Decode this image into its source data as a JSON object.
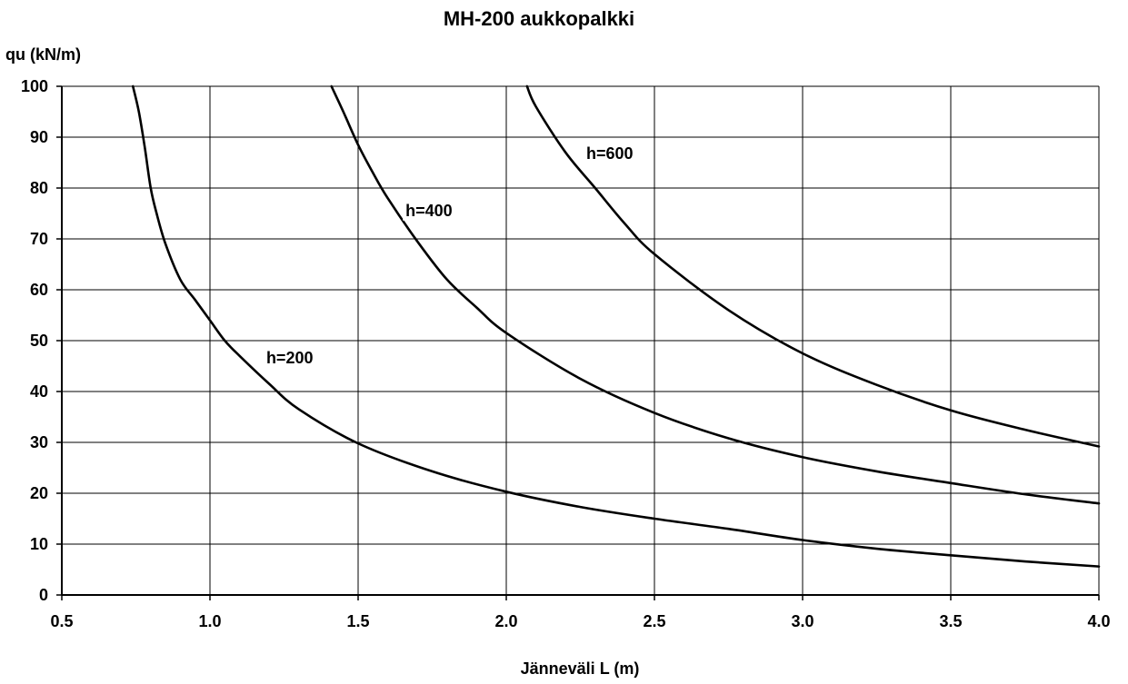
{
  "chart_data": {
    "type": "line",
    "title": "MH-200 aukkopalkki",
    "xlabel": "Jänneväli L (m)",
    "ylabel": "qu (kN/m)",
    "xlim": [
      0.5,
      4.0
    ],
    "ylim": [
      0,
      100
    ],
    "x_ticks": [
      "0.5",
      "1.0",
      "1.5",
      "2.0",
      "2.5",
      "3.0",
      "3.5",
      "4.0"
    ],
    "y_ticks": [
      "0",
      "10",
      "20",
      "30",
      "40",
      "50",
      "60",
      "70",
      "80",
      "90",
      "100"
    ],
    "grid": true,
    "legend": "none",
    "series": [
      {
        "name": "h=200",
        "x": [
          0.74,
          0.76,
          0.78,
          0.8,
          0.82,
          0.85,
          0.9,
          0.95,
          1.0,
          1.05,
          1.1,
          1.2,
          1.3,
          1.5,
          1.75,
          2.0,
          2.25,
          2.5,
          2.75,
          3.0,
          3.25,
          3.5,
          3.75,
          4.0
        ],
        "y": [
          100,
          95,
          88,
          80,
          75,
          69,
          62,
          58,
          54,
          50,
          47,
          41.5,
          36.5,
          29.8,
          24.3,
          20.3,
          17.3,
          15,
          13,
          10.8,
          9.1,
          7.8,
          6.6,
          5.6
        ]
      },
      {
        "name": "h=400",
        "x": [
          1.41,
          1.45,
          1.5,
          1.55,
          1.6,
          1.7,
          1.8,
          1.9,
          2.0,
          2.25,
          2.5,
          2.75,
          3.0,
          3.25,
          3.5,
          3.75,
          4.0
        ],
        "y": [
          100,
          95,
          88.5,
          83,
          78,
          69.5,
          62,
          56.5,
          51.5,
          42.5,
          35.8,
          30.8,
          27.1,
          24.3,
          22,
          19.8,
          18
        ]
      },
      {
        "name": "h=600",
        "x": [
          2.07,
          2.1,
          2.2,
          2.3,
          2.4,
          2.5,
          2.75,
          3.0,
          3.25,
          3.5,
          3.75,
          4.0
        ],
        "y": [
          100,
          96,
          87,
          80,
          73,
          67,
          56,
          47.5,
          41.3,
          36.3,
          32.5,
          29.2
        ]
      }
    ],
    "annotations": [
      {
        "text": "h=200",
        "x": 1.19,
        "y": 45.5
      },
      {
        "text": "h=400",
        "x": 1.66,
        "y": 74.5
      },
      {
        "text": "h=600",
        "x": 2.27,
        "y": 85.7
      }
    ]
  }
}
